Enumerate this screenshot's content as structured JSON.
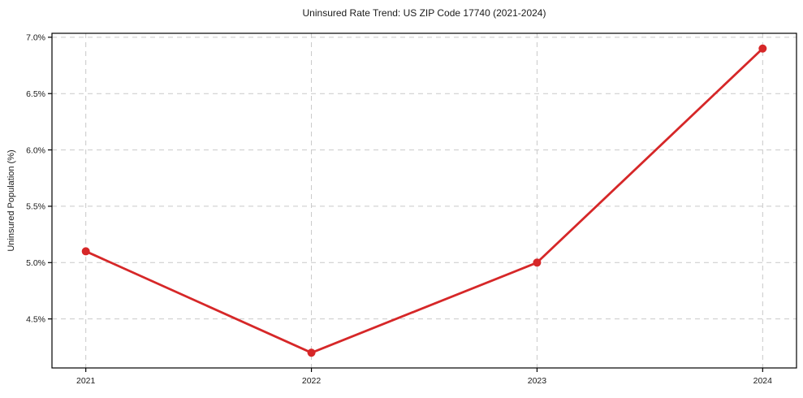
{
  "title": "Uninsured Rate Trend: US ZIP Code 17740 (2021-2024)",
  "chart_data": {
    "type": "line",
    "title": "Uninsured Rate Trend: US ZIP Code 17740 (2021-2024)",
    "xlabel": "",
    "ylabel": "Uninsured Population (%)",
    "x": [
      2021,
      2022,
      2023,
      2024
    ],
    "series": [
      {
        "name": "Uninsured Population (%)",
        "values": [
          5.1,
          4.2,
          5.0,
          6.9
        ]
      }
    ],
    "xlim": [
      2020.85,
      2024.15
    ],
    "ylim": [
      4.065,
      7.035
    ],
    "xticks": [
      2021,
      2022,
      2023,
      2024
    ],
    "xtick_labels": [
      "2021",
      "2022",
      "2023",
      "2024"
    ],
    "yticks": [
      4.5,
      5.0,
      5.5,
      6.0,
      6.5,
      7.0
    ],
    "ytick_labels": [
      "4.5%",
      "5.0%",
      "5.5%",
      "6.0%",
      "6.5%",
      "7.0%"
    ],
    "grid": true,
    "legend": "none",
    "colors": {
      "line": "#d62728",
      "marker": "#d62728",
      "grid": "#c9c9c9",
      "axis": "#000000",
      "text": "#1a1a1a",
      "background": "#ffffff"
    }
  }
}
